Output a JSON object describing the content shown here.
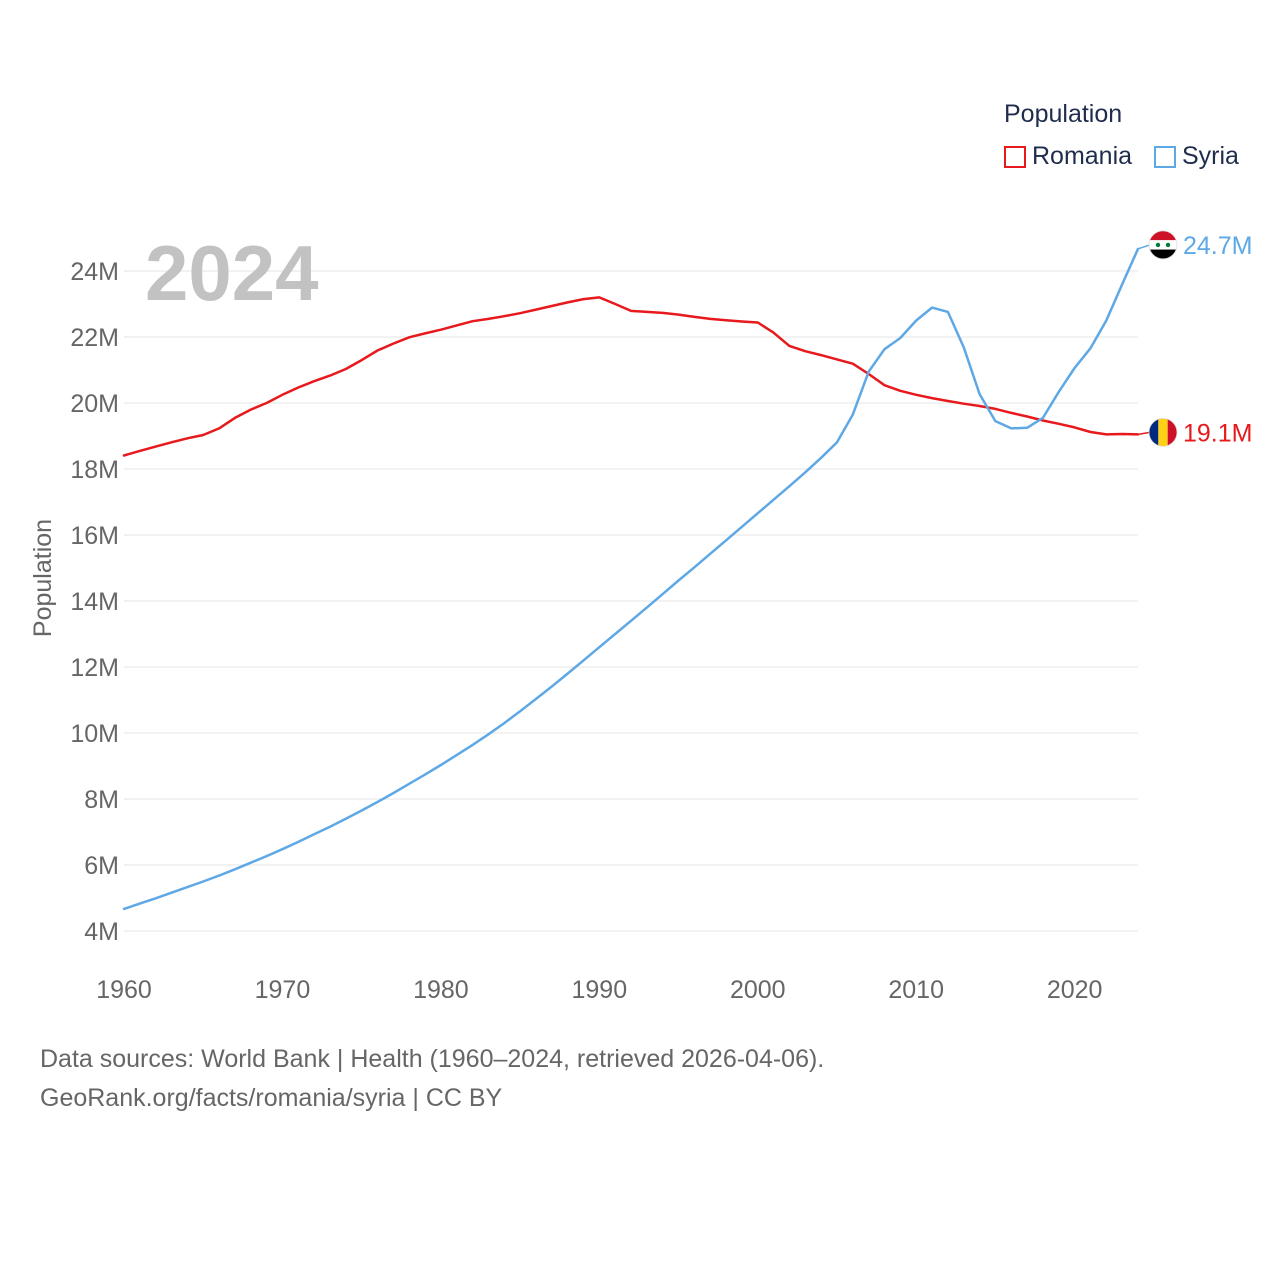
{
  "legend": {
    "title": "Population",
    "items": [
      {
        "label": "Romania",
        "color": "#e8191c"
      },
      {
        "label": "Syria",
        "color": "#5ea8e6"
      }
    ]
  },
  "year_overlay": "2024",
  "footer": {
    "line1": "Data sources: World Bank | Health (1960–2024, retrieved 2026-04-06).",
    "line2": "GeoRank.org/facts/romania/syria | CC BY"
  },
  "chart_data": {
    "type": "line",
    "title": "",
    "xlabel": "",
    "ylabel": "Population",
    "xlim": [
      1960,
      2024
    ],
    "ylim": [
      4,
      25
    ],
    "x_ticks": [
      1960,
      1970,
      1980,
      1990,
      2000,
      2010,
      2020
    ],
    "y_ticks": [
      4,
      6,
      8,
      10,
      12,
      14,
      16,
      18,
      20,
      22,
      24
    ],
    "y_tick_labels": [
      "4M",
      "6M",
      "8M",
      "10M",
      "12M",
      "14M",
      "16M",
      "18M",
      "20M",
      "22M",
      "24M"
    ],
    "grid": true,
    "unit": "millions",
    "series": [
      {
        "name": "Romania",
        "color": "#e8191c",
        "end_label": "19.1M",
        "flag": "romania-flag-icon",
        "x": [
          1960,
          1961,
          1962,
          1963,
          1964,
          1965,
          1966,
          1967,
          1968,
          1969,
          1970,
          1971,
          1972,
          1973,
          1974,
          1975,
          1976,
          1977,
          1978,
          1979,
          1980,
          1981,
          1982,
          1983,
          1984,
          1985,
          1986,
          1987,
          1988,
          1989,
          1990,
          1991,
          1992,
          1993,
          1994,
          1995,
          1996,
          1997,
          1998,
          1999,
          2000,
          2001,
          2002,
          2003,
          2004,
          2005,
          2006,
          2007,
          2008,
          2009,
          2010,
          2011,
          2012,
          2013,
          2014,
          2015,
          2016,
          2017,
          2018,
          2019,
          2020,
          2021,
          2022,
          2023,
          2024
        ],
        "values": [
          18.41,
          18.55,
          18.68,
          18.81,
          18.93,
          19.03,
          19.23,
          19.55,
          19.8,
          20.0,
          20.25,
          20.47,
          20.66,
          20.83,
          21.03,
          21.3,
          21.59,
          21.8,
          21.99,
          22.11,
          22.22,
          22.35,
          22.48,
          22.55,
          22.63,
          22.72,
          22.83,
          22.94,
          23.05,
          23.15,
          23.2,
          23.0,
          22.79,
          22.76,
          22.73,
          22.68,
          22.61,
          22.55,
          22.51,
          22.47,
          22.44,
          22.13,
          21.73,
          21.57,
          21.45,
          21.32,
          21.19,
          20.88,
          20.54,
          20.37,
          20.25,
          20.15,
          20.06,
          19.98,
          19.91,
          19.82,
          19.7,
          19.59,
          19.47,
          19.37,
          19.26,
          19.12,
          19.05,
          19.06,
          19.05
        ]
      },
      {
        "name": "Syria",
        "color": "#5ea8e6",
        "end_label": "24.7M",
        "flag": "syria-flag-icon",
        "x": [
          1960,
          1961,
          1962,
          1963,
          1964,
          1965,
          1966,
          1967,
          1968,
          1969,
          1970,
          1971,
          1972,
          1973,
          1974,
          1975,
          1976,
          1977,
          1978,
          1979,
          1980,
          1981,
          1982,
          1983,
          1984,
          1985,
          1986,
          1987,
          1988,
          1989,
          1990,
          1991,
          1992,
          1993,
          1994,
          1995,
          1996,
          1997,
          1998,
          1999,
          2000,
          2001,
          2002,
          2003,
          2004,
          2005,
          2006,
          2007,
          2008,
          2009,
          2010,
          2011,
          2012,
          2013,
          2014,
          2015,
          2016,
          2017,
          2018,
          2019,
          2020,
          2021,
          2022,
          2023,
          2024
        ],
        "values": [
          4.67,
          4.83,
          4.99,
          5.16,
          5.33,
          5.5,
          5.68,
          5.87,
          6.07,
          6.27,
          6.48,
          6.7,
          6.93,
          7.16,
          7.4,
          7.65,
          7.91,
          8.18,
          8.46,
          8.74,
          9.03,
          9.33,
          9.64,
          9.96,
          10.3,
          10.66,
          11.03,
          11.41,
          11.8,
          12.2,
          12.6,
          13.0,
          13.4,
          13.8,
          14.21,
          14.62,
          15.02,
          15.43,
          15.84,
          16.25,
          16.66,
          17.07,
          17.48,
          17.9,
          18.34,
          18.81,
          19.65,
          20.95,
          21.63,
          21.97,
          22.5,
          22.89,
          22.76,
          21.69,
          20.27,
          19.45,
          19.23,
          19.25,
          19.55,
          20.34,
          21.06,
          21.66,
          22.5,
          23.6,
          24.67
        ]
      }
    ]
  }
}
